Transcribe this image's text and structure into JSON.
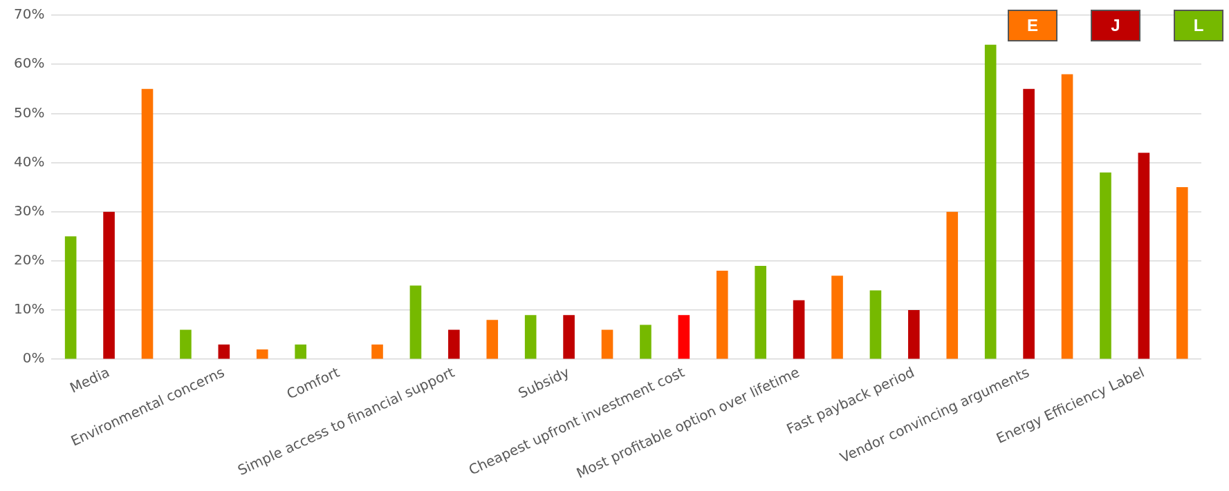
{
  "chart_data": {
    "type": "bar",
    "categories": [
      "Media",
      "Environmental concerns",
      "Comfort",
      "Simple access to financial support",
      "Subsidy",
      "Cheapest upfront investment cost",
      "Most profitable option over lifetime",
      "Fast payback period",
      "Vendor convincing arguments",
      "Energy Efficiency Label"
    ],
    "series": [
      {
        "name": "L",
        "color": "#76b900",
        "values": [
          25,
          6,
          3,
          15,
          9,
          7,
          19,
          14,
          64,
          38
        ]
      },
      {
        "name": "J",
        "color": "#c00000",
        "colors": [
          "#c00000",
          "#c00000",
          "#c00000",
          "#c00000",
          "#c00000",
          "#ff0000",
          "#c00000",
          "#c00000",
          "#c00000",
          "#c00000"
        ],
        "values": [
          30,
          3,
          0,
          6,
          9,
          9,
          12,
          10,
          55,
          42
        ]
      },
      {
        "name": "E",
        "color": "#ff7300",
        "values": [
          55,
          2,
          3,
          8,
          6,
          18,
          17,
          30,
          58,
          35
        ]
      }
    ],
    "ylim": [
      0,
      70
    ],
    "yticks": [
      {
        "value": 0,
        "label": "0%"
      },
      {
        "value": 10,
        "label": "10%"
      },
      {
        "value": 20,
        "label": "20%"
      },
      {
        "value": 30,
        "label": "30%"
      },
      {
        "value": 40,
        "label": "40%"
      },
      {
        "value": 50,
        "label": "50%"
      },
      {
        "value": 60,
        "label": "60%"
      },
      {
        "value": 70,
        "label": "70%"
      }
    ],
    "grid": "y",
    "legend": "top right"
  }
}
